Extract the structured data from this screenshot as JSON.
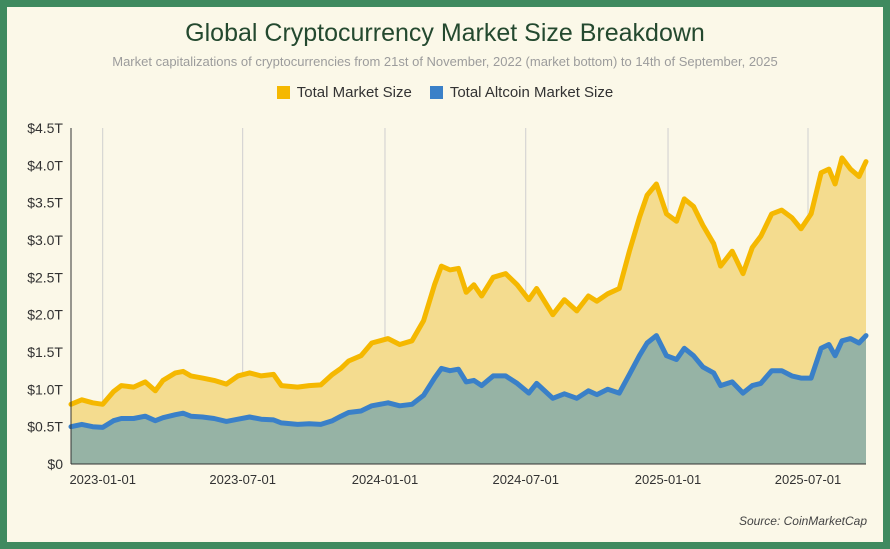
{
  "chart_data": {
    "type": "area",
    "title": "Global Cryptocurrency Market Size Breakdown",
    "subtitle": "Market capitalizations of cryptocurrencies from 21st of November, 2022 (market bottom) to 14th of September, 2025",
    "source": "Source: CoinMarketCap",
    "xlabel": "",
    "ylabel": "",
    "x_range": [
      "2022-11-21",
      "2025-09-14"
    ],
    "ylim": [
      0,
      4.5
    ],
    "yticks": [
      0,
      0.5,
      1.0,
      1.5,
      2.0,
      2.5,
      3.0,
      3.5,
      4.0,
      4.5
    ],
    "ytick_labels": [
      "$0",
      "$0.5T",
      "$1.0T",
      "$1.5T",
      "$2.0T",
      "$2.5T",
      "$3.0T",
      "$3.5T",
      "$4.0T",
      "$4.5T"
    ],
    "xticks": [
      "2023-01-01",
      "2023-07-01",
      "2024-01-01",
      "2024-07-01",
      "2025-01-01",
      "2025-07-01"
    ],
    "grid": "vertical",
    "legend_position": "top-center",
    "series": [
      {
        "name": "Total Market Size",
        "color": "#f5b800",
        "fill": "#f4dc8f",
        "points": [
          [
            "2022-11-21",
            0.8
          ],
          [
            "2022-12-05",
            0.86
          ],
          [
            "2022-12-19",
            0.82
          ],
          [
            "2023-01-01",
            0.8
          ],
          [
            "2023-01-15",
            0.97
          ],
          [
            "2023-01-25",
            1.05
          ],
          [
            "2023-02-10",
            1.03
          ],
          [
            "2023-02-25",
            1.1
          ],
          [
            "2023-03-10",
            0.98
          ],
          [
            "2023-03-20",
            1.12
          ],
          [
            "2023-04-05",
            1.22
          ],
          [
            "2023-04-15",
            1.24
          ],
          [
            "2023-04-25",
            1.18
          ],
          [
            "2023-05-10",
            1.15
          ],
          [
            "2023-05-25",
            1.12
          ],
          [
            "2023-06-10",
            1.07
          ],
          [
            "2023-06-25",
            1.18
          ],
          [
            "2023-07-10",
            1.22
          ],
          [
            "2023-07-25",
            1.18
          ],
          [
            "2023-08-10",
            1.2
          ],
          [
            "2023-08-20",
            1.05
          ],
          [
            "2023-09-10",
            1.03
          ],
          [
            "2023-09-25",
            1.05
          ],
          [
            "2023-10-10",
            1.06
          ],
          [
            "2023-10-25",
            1.2
          ],
          [
            "2023-11-05",
            1.28
          ],
          [
            "2023-11-15",
            1.38
          ],
          [
            "2023-12-01",
            1.45
          ],
          [
            "2023-12-15",
            1.62
          ],
          [
            "2024-01-05",
            1.68
          ],
          [
            "2024-01-20",
            1.6
          ],
          [
            "2024-02-05",
            1.65
          ],
          [
            "2024-02-20",
            1.92
          ],
          [
            "2024-03-05",
            2.4
          ],
          [
            "2024-03-14",
            2.65
          ],
          [
            "2024-03-25",
            2.6
          ],
          [
            "2024-04-05",
            2.62
          ],
          [
            "2024-04-15",
            2.3
          ],
          [
            "2024-04-25",
            2.4
          ],
          [
            "2024-05-05",
            2.25
          ],
          [
            "2024-05-20",
            2.5
          ],
          [
            "2024-06-05",
            2.55
          ],
          [
            "2024-06-20",
            2.4
          ],
          [
            "2024-07-05",
            2.2
          ],
          [
            "2024-07-15",
            2.35
          ],
          [
            "2024-08-05",
            2.0
          ],
          [
            "2024-08-20",
            2.2
          ],
          [
            "2024-09-05",
            2.05
          ],
          [
            "2024-09-20",
            2.25
          ],
          [
            "2024-10-01",
            2.18
          ],
          [
            "2024-10-15",
            2.28
          ],
          [
            "2024-10-30",
            2.35
          ],
          [
            "2024-11-12",
            2.85
          ],
          [
            "2024-11-25",
            3.3
          ],
          [
            "2024-12-05",
            3.6
          ],
          [
            "2024-12-17",
            3.75
          ],
          [
            "2024-12-30",
            3.35
          ],
          [
            "2025-01-12",
            3.25
          ],
          [
            "2025-01-22",
            3.55
          ],
          [
            "2025-02-03",
            3.45
          ],
          [
            "2025-02-15",
            3.2
          ],
          [
            "2025-03-01",
            2.95
          ],
          [
            "2025-03-10",
            2.65
          ],
          [
            "2025-03-25",
            2.85
          ],
          [
            "2025-04-08",
            2.55
          ],
          [
            "2025-04-20",
            2.9
          ],
          [
            "2025-05-01",
            3.05
          ],
          [
            "2025-05-15",
            3.35
          ],
          [
            "2025-05-28",
            3.4
          ],
          [
            "2025-06-10",
            3.3
          ],
          [
            "2025-06-22",
            3.15
          ],
          [
            "2025-07-05",
            3.35
          ],
          [
            "2025-07-18",
            3.9
          ],
          [
            "2025-07-28",
            3.95
          ],
          [
            "2025-08-05",
            3.75
          ],
          [
            "2025-08-14",
            4.1
          ],
          [
            "2025-08-25",
            3.95
          ],
          [
            "2025-09-05",
            3.85
          ],
          [
            "2025-09-14",
            4.05
          ]
        ]
      },
      {
        "name": "Total Altcoin Market Size",
        "color": "#3a80c8",
        "fill": "#96b3a5",
        "points": [
          [
            "2022-11-21",
            0.5
          ],
          [
            "2022-12-05",
            0.53
          ],
          [
            "2022-12-19",
            0.5
          ],
          [
            "2023-01-01",
            0.49
          ],
          [
            "2023-01-15",
            0.58
          ],
          [
            "2023-01-25",
            0.61
          ],
          [
            "2023-02-10",
            0.61
          ],
          [
            "2023-02-25",
            0.64
          ],
          [
            "2023-03-10",
            0.58
          ],
          [
            "2023-03-20",
            0.62
          ],
          [
            "2023-04-05",
            0.66
          ],
          [
            "2023-04-15",
            0.68
          ],
          [
            "2023-04-25",
            0.64
          ],
          [
            "2023-05-10",
            0.63
          ],
          [
            "2023-05-25",
            0.61
          ],
          [
            "2023-06-10",
            0.57
          ],
          [
            "2023-06-25",
            0.6
          ],
          [
            "2023-07-10",
            0.63
          ],
          [
            "2023-07-25",
            0.6
          ],
          [
            "2023-08-10",
            0.59
          ],
          [
            "2023-08-20",
            0.55
          ],
          [
            "2023-09-10",
            0.53
          ],
          [
            "2023-09-25",
            0.54
          ],
          [
            "2023-10-10",
            0.53
          ],
          [
            "2023-10-25",
            0.58
          ],
          [
            "2023-11-05",
            0.64
          ],
          [
            "2023-11-15",
            0.69
          ],
          [
            "2023-12-01",
            0.71
          ],
          [
            "2023-12-15",
            0.78
          ],
          [
            "2024-01-05",
            0.82
          ],
          [
            "2024-01-20",
            0.78
          ],
          [
            "2024-02-05",
            0.8
          ],
          [
            "2024-02-20",
            0.92
          ],
          [
            "2024-03-05",
            1.15
          ],
          [
            "2024-03-14",
            1.28
          ],
          [
            "2024-03-25",
            1.25
          ],
          [
            "2024-04-05",
            1.27
          ],
          [
            "2024-04-15",
            1.1
          ],
          [
            "2024-04-25",
            1.12
          ],
          [
            "2024-05-05",
            1.05
          ],
          [
            "2024-05-20",
            1.18
          ],
          [
            "2024-06-05",
            1.18
          ],
          [
            "2024-06-20",
            1.08
          ],
          [
            "2024-07-05",
            0.95
          ],
          [
            "2024-07-15",
            1.08
          ],
          [
            "2024-08-05",
            0.88
          ],
          [
            "2024-08-20",
            0.94
          ],
          [
            "2024-09-05",
            0.88
          ],
          [
            "2024-09-20",
            0.98
          ],
          [
            "2024-10-01",
            0.93
          ],
          [
            "2024-10-15",
            1.0
          ],
          [
            "2024-10-30",
            0.95
          ],
          [
            "2024-11-12",
            1.2
          ],
          [
            "2024-11-25",
            1.45
          ],
          [
            "2024-12-05",
            1.62
          ],
          [
            "2024-12-17",
            1.72
          ],
          [
            "2024-12-30",
            1.45
          ],
          [
            "2025-01-12",
            1.4
          ],
          [
            "2025-01-22",
            1.55
          ],
          [
            "2025-02-03",
            1.45
          ],
          [
            "2025-02-15",
            1.3
          ],
          [
            "2025-03-01",
            1.22
          ],
          [
            "2025-03-10",
            1.05
          ],
          [
            "2025-03-25",
            1.1
          ],
          [
            "2025-04-08",
            0.95
          ],
          [
            "2025-04-20",
            1.05
          ],
          [
            "2025-05-01",
            1.08
          ],
          [
            "2025-05-15",
            1.25
          ],
          [
            "2025-05-28",
            1.25
          ],
          [
            "2025-06-10",
            1.18
          ],
          [
            "2025-06-22",
            1.15
          ],
          [
            "2025-07-05",
            1.15
          ],
          [
            "2025-07-18",
            1.55
          ],
          [
            "2025-07-28",
            1.6
          ],
          [
            "2025-08-05",
            1.45
          ],
          [
            "2025-08-14",
            1.65
          ],
          [
            "2025-08-25",
            1.68
          ],
          [
            "2025-09-05",
            1.62
          ],
          [
            "2025-09-14",
            1.72
          ]
        ]
      }
    ]
  }
}
